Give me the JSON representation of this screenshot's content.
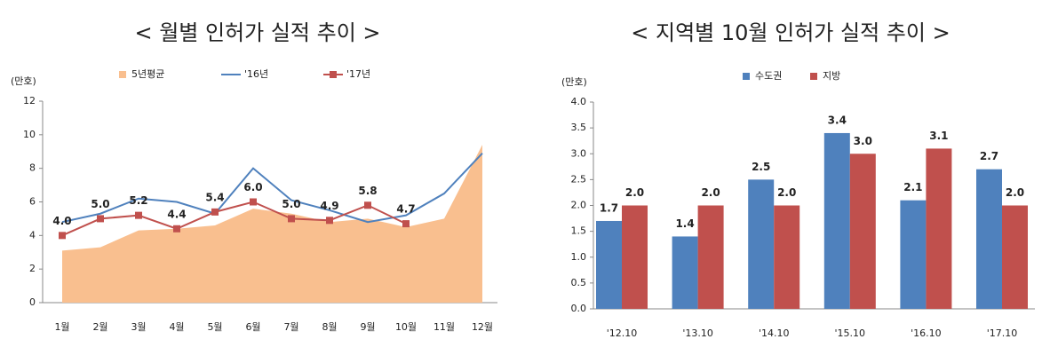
{
  "chart_data": [
    {
      "type": "line",
      "title": "< 월별 인허가 실적 추이 >",
      "y_label": "(만호)",
      "categories": [
        "1월",
        "2월",
        "3월",
        "4월",
        "5월",
        "6월",
        "7월",
        "8월",
        "9월",
        "10월",
        "11월",
        "12월"
      ],
      "ylim": [
        0,
        12
      ],
      "yticks": [
        0,
        2,
        4,
        6,
        8,
        10,
        12
      ],
      "series": [
        {
          "name": "5년평균",
          "type": "area",
          "color": "#f9bf8f",
          "values": [
            3.1,
            3.3,
            4.3,
            4.4,
            4.6,
            5.6,
            5.3,
            4.8,
            5.0,
            4.5,
            5.0,
            9.4
          ]
        },
        {
          "name": "'16년",
          "type": "line",
          "color": "#4f81bd",
          "values": [
            4.8,
            5.3,
            6.2,
            6.0,
            5.3,
            8.0,
            6.1,
            5.5,
            4.8,
            5.2,
            6.5,
            8.9
          ]
        },
        {
          "name": "'17년",
          "type": "line",
          "markers": true,
          "color": "#c0504d",
          "values": [
            4.0,
            5.0,
            5.2,
            4.4,
            5.4,
            6.0,
            5.0,
            4.9,
            5.8,
            4.7,
            null,
            null
          ],
          "value_labels": [
            "4.0",
            "5.0",
            "5.2",
            "4.4",
            "5.4",
            "6.0",
            "5.0",
            "4.9",
            "5.8",
            "4.7",
            null,
            null
          ]
        }
      ]
    },
    {
      "type": "bar",
      "title": "< 지역별 10월 인허가 실적 추이 >",
      "y_label": "(만호)",
      "categories": [
        "'12.10",
        "'13.10",
        "'14.10",
        "'15.10",
        "'16.10",
        "'17.10"
      ],
      "ylim": [
        0,
        4
      ],
      "yticks": [
        {
          "value": 0,
          "label": "0.0"
        },
        {
          "value": 0.5,
          "label": "0.5"
        },
        {
          "value": 1,
          "label": "1.0"
        },
        {
          "value": 1.5,
          "label": "1.5"
        },
        {
          "value": 2,
          "label": "2.0"
        },
        {
          "value": 2.5,
          "label": "2.5"
        },
        {
          "value": 3,
          "label": "3.0"
        },
        {
          "value": 3.5,
          "label": "3.5"
        },
        {
          "value": 4,
          "label": "4.0"
        }
      ],
      "series": [
        {
          "name": "수도권",
          "color": "#4f81bd",
          "values": [
            1.7,
            1.4,
            2.5,
            3.4,
            2.1,
            2.7
          ]
        },
        {
          "name": "지방",
          "color": "#c0504d",
          "values": [
            2.0,
            2.0,
            2.0,
            3.0,
            3.1,
            2.0
          ],
          "value_labels": [
            "2.0",
            "2.0",
            "2.0",
            "3.0",
            "3.1",
            "2.0"
          ]
        }
      ]
    }
  ]
}
